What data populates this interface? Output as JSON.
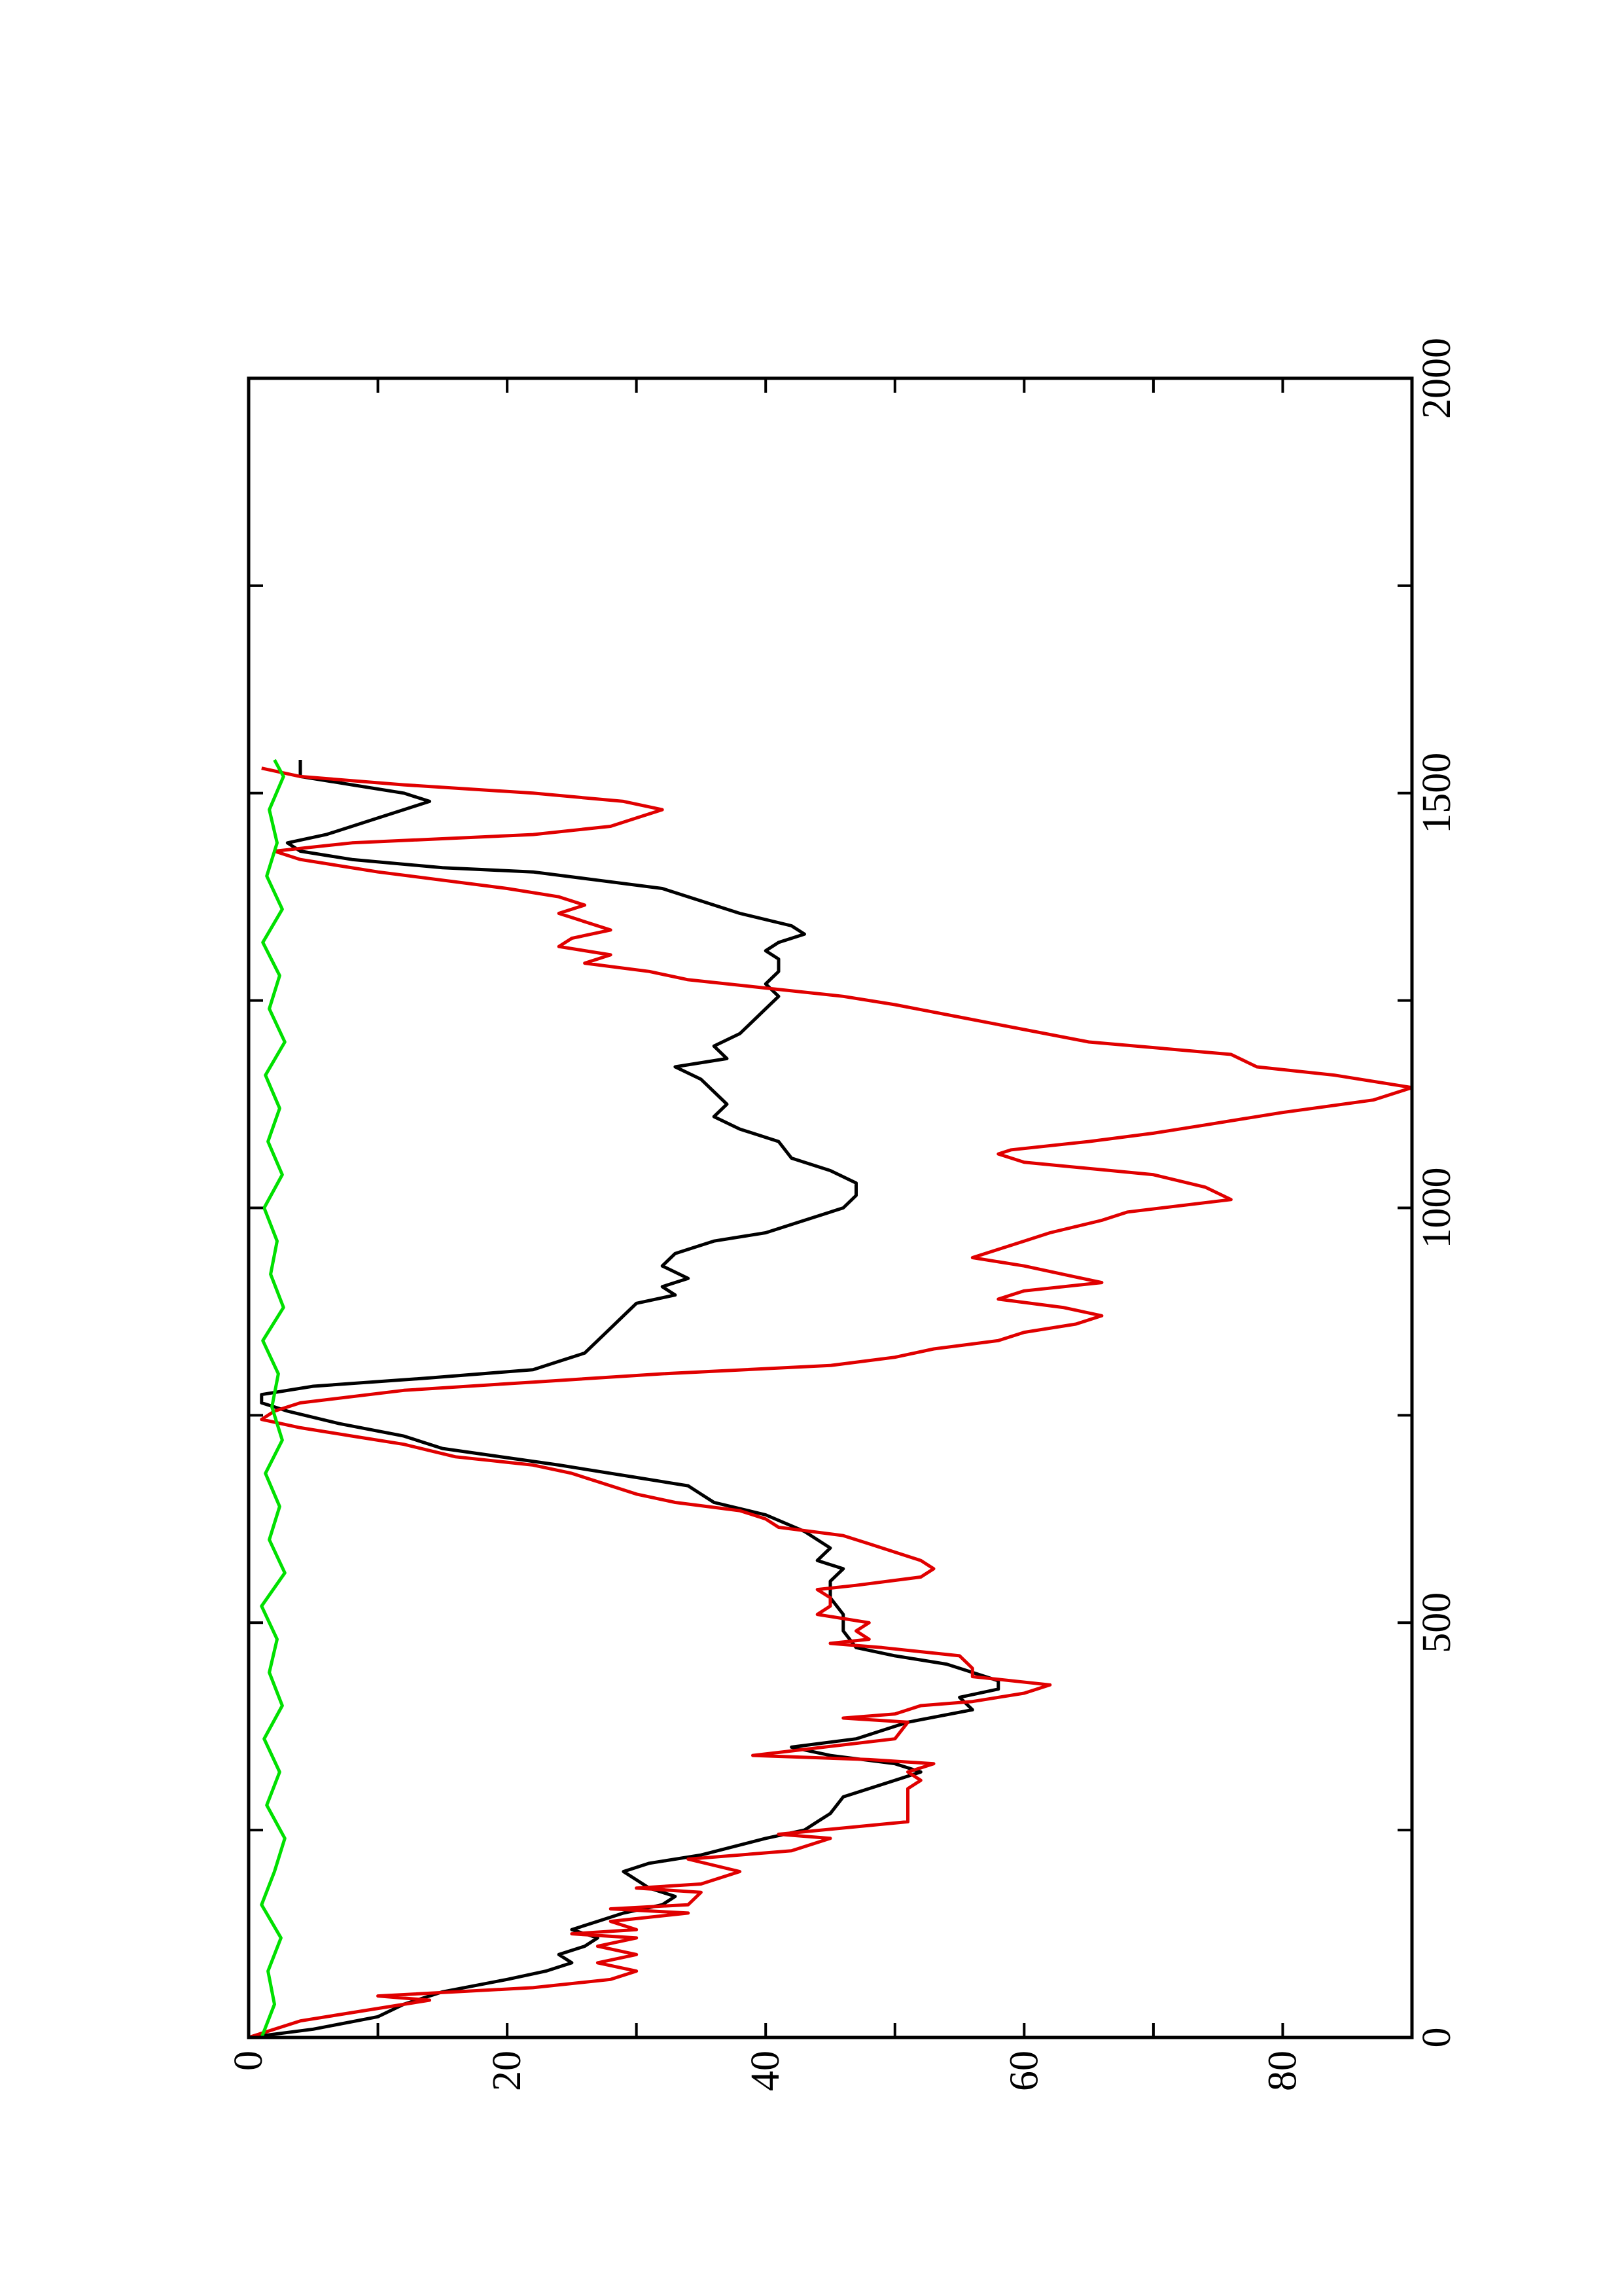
{
  "chart_data": {
    "type": "line",
    "orientation": "rotated-90-ccw",
    "title": "",
    "xlabel": "",
    "ylabel": "",
    "xlim": [
      0,
      2000
    ],
    "ylim": [
      0,
      90
    ],
    "x_ticks": [
      0,
      500,
      1000,
      1500,
      2000
    ],
    "y_ticks": [
      0,
      20,
      40,
      60,
      80
    ],
    "grid": false,
    "legend": "none",
    "series": [
      {
        "color": "#000000",
        "points": [
          [
            0,
            0
          ],
          [
            10,
            5
          ],
          [
            25,
            10
          ],
          [
            40,
            12
          ],
          [
            55,
            15
          ],
          [
            70,
            20
          ],
          [
            80,
            23
          ],
          [
            90,
            25
          ],
          [
            100,
            24
          ],
          [
            110,
            26
          ],
          [
            120,
            27
          ],
          [
            130,
            25
          ],
          [
            140,
            27
          ],
          [
            150,
            29
          ],
          [
            160,
            32
          ],
          [
            170,
            33
          ],
          [
            180,
            31
          ],
          [
            190,
            30
          ],
          [
            200,
            29
          ],
          [
            210,
            31
          ],
          [
            220,
            35
          ],
          [
            240,
            40
          ],
          [
            250,
            43
          ],
          [
            260,
            44
          ],
          [
            270,
            45
          ],
          [
            290,
            46
          ],
          [
            300,
            48
          ],
          [
            310,
            50
          ],
          [
            320,
            52
          ],
          [
            330,
            50
          ],
          [
            340,
            45
          ],
          [
            350,
            42
          ],
          [
            360,
            47
          ],
          [
            380,
            51
          ],
          [
            395,
            56
          ],
          [
            410,
            55
          ],
          [
            420,
            58
          ],
          [
            430,
            58
          ],
          [
            440,
            56
          ],
          [
            450,
            54
          ],
          [
            460,
            50
          ],
          [
            470,
            47
          ],
          [
            490,
            46
          ],
          [
            510,
            46
          ],
          [
            530,
            45
          ],
          [
            550,
            45
          ],
          [
            565,
            46
          ],
          [
            575,
            44
          ],
          [
            590,
            45
          ],
          [
            610,
            43
          ],
          [
            630,
            40
          ],
          [
            645,
            36
          ],
          [
            655,
            35
          ],
          [
            665,
            34
          ],
          [
            675,
            30
          ],
          [
            690,
            24
          ],
          [
            710,
            15
          ],
          [
            725,
            12
          ],
          [
            740,
            7
          ],
          [
            755,
            3
          ],
          [
            765,
            1
          ],
          [
            775,
            1
          ],
          [
            785,
            5
          ],
          [
            795,
            14
          ],
          [
            805,
            22
          ],
          [
            815,
            24
          ],
          [
            825,
            26
          ],
          [
            840,
            27
          ],
          [
            855,
            28
          ],
          [
            870,
            29
          ],
          [
            885,
            30
          ],
          [
            895,
            33
          ],
          [
            905,
            32
          ],
          [
            915,
            34
          ],
          [
            930,
            32
          ],
          [
            945,
            33
          ],
          [
            960,
            36
          ],
          [
            970,
            40
          ],
          [
            985,
            43
          ],
          [
            1000,
            46
          ],
          [
            1015,
            47
          ],
          [
            1030,
            47
          ],
          [
            1045,
            45
          ],
          [
            1060,
            42
          ],
          [
            1080,
            41
          ],
          [
            1095,
            38
          ],
          [
            1110,
            36
          ],
          [
            1125,
            37
          ],
          [
            1140,
            36
          ],
          [
            1155,
            35
          ],
          [
            1170,
            33
          ],
          [
            1180,
            37
          ],
          [
            1195,
            36
          ],
          [
            1210,
            38
          ],
          [
            1225,
            39
          ],
          [
            1240,
            40
          ],
          [
            1255,
            41
          ],
          [
            1270,
            40
          ],
          [
            1285,
            41
          ],
          [
            1300,
            41
          ],
          [
            1310,
            40
          ],
          [
            1320,
            41
          ],
          [
            1330,
            43
          ],
          [
            1340,
            42
          ],
          [
            1355,
            38
          ],
          [
            1370,
            35
          ],
          [
            1385,
            32
          ],
          [
            1395,
            27
          ],
          [
            1405,
            22
          ],
          [
            1410,
            15
          ],
          [
            1420,
            8
          ],
          [
            1430,
            4
          ],
          [
            1440,
            3
          ],
          [
            1450,
            6
          ],
          [
            1460,
            8
          ],
          [
            1470,
            10
          ],
          [
            1480,
            12
          ],
          [
            1490,
            14
          ],
          [
            1500,
            12
          ],
          [
            1510,
            8
          ],
          [
            1520,
            4
          ],
          [
            1530,
            4
          ],
          [
            1540,
            4
          ]
        ]
      },
      {
        "color": "#e00000",
        "points": [
          [
            0,
            0
          ],
          [
            20,
            4
          ],
          [
            30,
            8
          ],
          [
            45,
            14
          ],
          [
            50,
            10
          ],
          [
            60,
            22
          ],
          [
            70,
            28
          ],
          [
            80,
            30
          ],
          [
            90,
            27
          ],
          [
            100,
            30
          ],
          [
            110,
            27
          ],
          [
            120,
            30
          ],
          [
            125,
            25
          ],
          [
            130,
            30
          ],
          [
            140,
            28
          ],
          [
            150,
            34
          ],
          [
            155,
            28
          ],
          [
            160,
            34
          ],
          [
            175,
            35
          ],
          [
            180,
            30
          ],
          [
            185,
            35
          ],
          [
            200,
            38
          ],
          [
            215,
            34
          ],
          [
            225,
            42
          ],
          [
            240,
            45
          ],
          [
            245,
            41
          ],
          [
            260,
            51
          ],
          [
            275,
            51
          ],
          [
            290,
            51
          ],
          [
            300,
            51
          ],
          [
            310,
            52
          ],
          [
            320,
            51
          ],
          [
            330,
            53
          ],
          [
            335,
            48
          ],
          [
            340,
            39
          ],
          [
            360,
            50
          ],
          [
            380,
            51
          ],
          [
            385,
            46
          ],
          [
            390,
            50
          ],
          [
            400,
            52
          ],
          [
            405,
            56
          ],
          [
            415,
            60
          ],
          [
            425,
            62
          ],
          [
            435,
            56
          ],
          [
            445,
            56
          ],
          [
            460,
            55
          ],
          [
            470,
            49
          ],
          [
            475,
            45
          ],
          [
            480,
            48
          ],
          [
            490,
            47
          ],
          [
            500,
            48
          ],
          [
            510,
            44
          ],
          [
            520,
            45
          ],
          [
            530,
            45
          ],
          [
            540,
            44
          ],
          [
            545,
            47
          ],
          [
            555,
            52
          ],
          [
            565,
            53
          ],
          [
            575,
            52
          ],
          [
            585,
            50
          ],
          [
            595,
            48
          ],
          [
            605,
            46
          ],
          [
            615,
            41
          ],
          [
            625,
            40
          ],
          [
            635,
            38
          ],
          [
            645,
            33
          ],
          [
            655,
            30
          ],
          [
            670,
            27
          ],
          [
            680,
            25
          ],
          [
            690,
            22
          ],
          [
            700,
            16
          ],
          [
            715,
            12
          ],
          [
            725,
            8
          ],
          [
            735,
            4
          ],
          [
            745,
            1
          ],
          [
            755,
            2
          ],
          [
            765,
            4
          ],
          [
            780,
            12
          ],
          [
            790,
            22
          ],
          [
            800,
            32
          ],
          [
            810,
            45
          ],
          [
            820,
            50
          ],
          [
            830,
            53
          ],
          [
            840,
            58
          ],
          [
            850,
            60
          ],
          [
            860,
            64
          ],
          [
            870,
            66
          ],
          [
            880,
            63
          ],
          [
            890,
            58
          ],
          [
            900,
            60
          ],
          [
            910,
            66
          ],
          [
            920,
            63
          ],
          [
            930,
            60
          ],
          [
            940,
            56
          ],
          [
            950,
            58
          ],
          [
            960,
            60
          ],
          [
            970,
            62
          ],
          [
            985,
            66
          ],
          [
            995,
            68
          ],
          [
            1010,
            76
          ],
          [
            1025,
            74
          ],
          [
            1040,
            70
          ],
          [
            1055,
            60
          ],
          [
            1065,
            58
          ],
          [
            1070,
            59
          ],
          [
            1080,
            65
          ],
          [
            1090,
            70
          ],
          [
            1100,
            74
          ],
          [
            1115,
            80
          ],
          [
            1130,
            87
          ],
          [
            1145,
            90
          ],
          [
            1160,
            84
          ],
          [
            1170,
            78
          ],
          [
            1185,
            76
          ],
          [
            1200,
            65
          ],
          [
            1215,
            60
          ],
          [
            1230,
            55
          ],
          [
            1245,
            50
          ],
          [
            1255,
            46
          ],
          [
            1265,
            40
          ],
          [
            1275,
            34
          ],
          [
            1285,
            31
          ],
          [
            1295,
            26
          ],
          [
            1305,
            28
          ],
          [
            1315,
            24
          ],
          [
            1325,
            25
          ],
          [
            1335,
            28
          ],
          [
            1345,
            26
          ],
          [
            1355,
            24
          ],
          [
            1365,
            26
          ],
          [
            1375,
            24
          ],
          [
            1385,
            20
          ],
          [
            1395,
            15
          ],
          [
            1405,
            10
          ],
          [
            1420,
            4
          ],
          [
            1430,
            2
          ],
          [
            1440,
            8
          ],
          [
            1450,
            22
          ],
          [
            1460,
            28
          ],
          [
            1470,
            30
          ],
          [
            1480,
            32
          ],
          [
            1490,
            29
          ],
          [
            1500,
            22
          ],
          [
            1510,
            12
          ],
          [
            1520,
            4
          ],
          [
            1530,
            1
          ]
        ]
      },
      {
        "color": "#00e000",
        "points": [
          [
            0,
            1
          ],
          [
            40,
            2
          ],
          [
            80,
            1.5
          ],
          [
            120,
            2.5
          ],
          [
            160,
            1
          ],
          [
            200,
            2
          ],
          [
            240,
            2.8
          ],
          [
            280,
            1.4
          ],
          [
            320,
            2.4
          ],
          [
            360,
            1.2
          ],
          [
            400,
            2.6
          ],
          [
            440,
            1.6
          ],
          [
            480,
            2.2
          ],
          [
            520,
            1
          ],
          [
            560,
            2.8
          ],
          [
            600,
            1.6
          ],
          [
            640,
            2.4
          ],
          [
            680,
            1.3
          ],
          [
            720,
            2.6
          ],
          [
            760,
            1.8
          ],
          [
            800,
            2.3
          ],
          [
            840,
            1.1
          ],
          [
            880,
            2.7
          ],
          [
            920,
            1.7
          ],
          [
            960,
            2.2
          ],
          [
            1000,
            1.2
          ],
          [
            1040,
            2.6
          ],
          [
            1080,
            1.5
          ],
          [
            1120,
            2.4
          ],
          [
            1160,
            1.3
          ],
          [
            1200,
            2.8
          ],
          [
            1240,
            1.6
          ],
          [
            1280,
            2.4
          ],
          [
            1320,
            1.1
          ],
          [
            1360,
            2.6
          ],
          [
            1400,
            1.4
          ],
          [
            1440,
            2.2
          ],
          [
            1480,
            1.6
          ],
          [
            1520,
            2.7
          ],
          [
            1540,
            2
          ]
        ]
      }
    ]
  }
}
